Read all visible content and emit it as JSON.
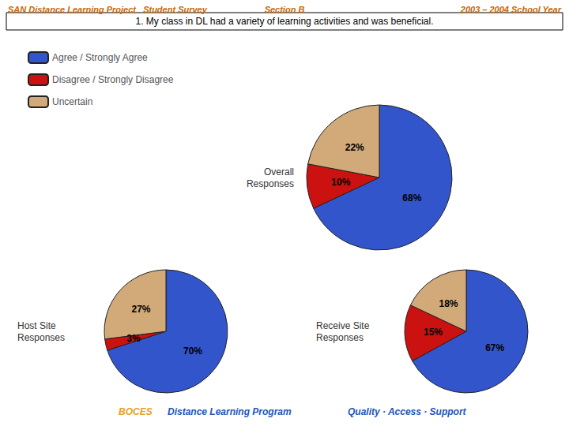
{
  "chart_data": [
    {
      "type": "pie",
      "title": "Overall\nResponses",
      "categories": [
        "Agree / Strongly Agree",
        "Disagree / Strongly Disagree",
        "Uncertain"
      ],
      "values": [
        68,
        10,
        22
      ],
      "value_labels": [
        "68%",
        "10%",
        "22%"
      ],
      "colors": [
        "#3355CC",
        "#CC1111",
        "#D2AA7A"
      ],
      "data_labels": true,
      "legend": "upper left",
      "annotations": [
        {
          "text": "SAN Distance Learning Project   Student Survey",
          "color": "#CC6600"
        },
        {
          "text": "Section B",
          "color": "#CC6600"
        },
        {
          "text": "2003 – 2004 School Year",
          "color": "#CC6600"
        },
        {
          "text": "1. My class in DL had a variety of learning activities and was beneficial.",
          "color": "#000000"
        },
        {
          "text": "BOCES",
          "color": "#E8A020"
        },
        {
          "text": "Distance Learning Program",
          "color": "#2255BB"
        },
        {
          "text": "Quality · Access · Support",
          "color": "#2255BB"
        }
      ]
    },
    {
      "type": "pie",
      "title": "Host Site\nResponses",
      "categories": [
        "Agree / Strongly Agree",
        "Disagree / Strongly Disagree",
        "Uncertain"
      ],
      "values": [
        70,
        3,
        27
      ],
      "value_labels": [
        "70%",
        "3%",
        "27%"
      ],
      "colors": [
        "#3355CC",
        "#CC1111",
        "#D2AA7A"
      ],
      "data_labels": true
    },
    {
      "type": "pie",
      "title": "Receive Site\nResponses",
      "categories": [
        "Agree / Strongly Agree",
        "Disagree / Strongly Disagree",
        "Uncertain"
      ],
      "values": [
        67,
        15,
        18
      ],
      "value_labels": [
        "67%",
        "15%",
        "18%"
      ],
      "colors": [
        "#3355CC",
        "#CC1111",
        "#D2AA7A"
      ],
      "data_labels": true
    }
  ]
}
